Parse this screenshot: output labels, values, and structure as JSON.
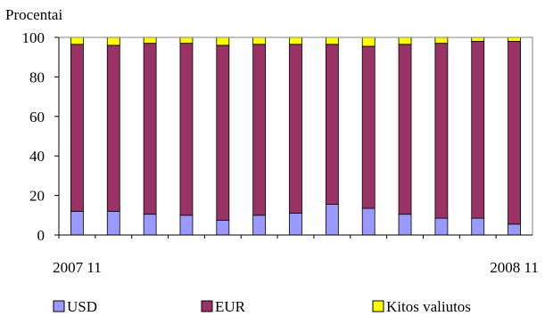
{
  "chart_data": {
    "type": "bar",
    "stacked": true,
    "ylabel": "Procentai",
    "ylim": [
      0,
      100
    ],
    "yticks": [
      0,
      20,
      40,
      60,
      80,
      100
    ],
    "categories": [
      "2007 11",
      "",
      "",
      "",
      "",
      "",
      "",
      "",
      "",
      "",
      "",
      "",
      "2008 11"
    ],
    "grid": false,
    "legend_position": "bottom",
    "series": [
      {
        "name": "USD",
        "color": "#9999ff",
        "values": [
          12,
          12,
          10.5,
          10,
          7.5,
          10,
          11,
          15.5,
          13.5,
          10.5,
          8.5,
          8.5,
          5.5
        ]
      },
      {
        "name": "EUR",
        "color": "#993366",
        "values": [
          84.5,
          84,
          86.5,
          87,
          88.5,
          86.5,
          85.5,
          81,
          82,
          86,
          88.5,
          89.5,
          92.5
        ]
      },
      {
        "name": "Kitos valiutos",
        "color": "#ffff00",
        "values": [
          3.5,
          4,
          3,
          3,
          4,
          3.5,
          3.5,
          3.5,
          4.5,
          3.5,
          3,
          2,
          2
        ]
      }
    ]
  }
}
